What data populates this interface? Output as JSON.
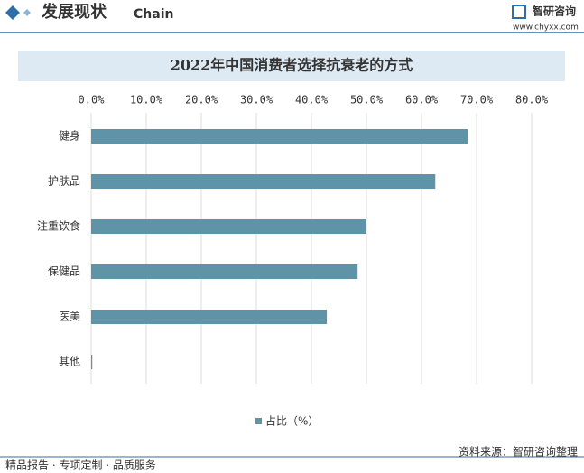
{
  "header": {
    "title": "发展现状",
    "subtitle": "Chain",
    "brand": "智研咨询",
    "url": "www.chyxx.com"
  },
  "chart_data": {
    "type": "hbar",
    "title": "2022年中国消费者选择抗衰老的方式",
    "categories": [
      "健身",
      "护肤品",
      "注重饮食",
      "保健品",
      "医美",
      "其他"
    ],
    "series": [
      {
        "name": "占比（%）",
        "color": "#5e93a8",
        "values": [
          68.4,
          62.5,
          50.0,
          48.4,
          42.8,
          0.2
        ]
      }
    ],
    "xlim": [
      0,
      80
    ],
    "xticks": [
      {
        "value": 0,
        "label": "0.0%"
      },
      {
        "value": 10,
        "label": "10.0%"
      },
      {
        "value": 20,
        "label": "20.0%"
      },
      {
        "value": 30,
        "label": "30.0%"
      },
      {
        "value": 40,
        "label": "40.0%"
      },
      {
        "value": 50,
        "label": "50.0%"
      },
      {
        "value": 60,
        "label": "60.0%"
      },
      {
        "value": 70,
        "label": "70.0%"
      },
      {
        "value": 80,
        "label": "80.0%"
      }
    ],
    "grid": true,
    "legend": "bottom"
  },
  "footer": {
    "left": "精品报告 · 专项定制 · 品质服务",
    "source": "资料来源：智研咨询整理"
  }
}
